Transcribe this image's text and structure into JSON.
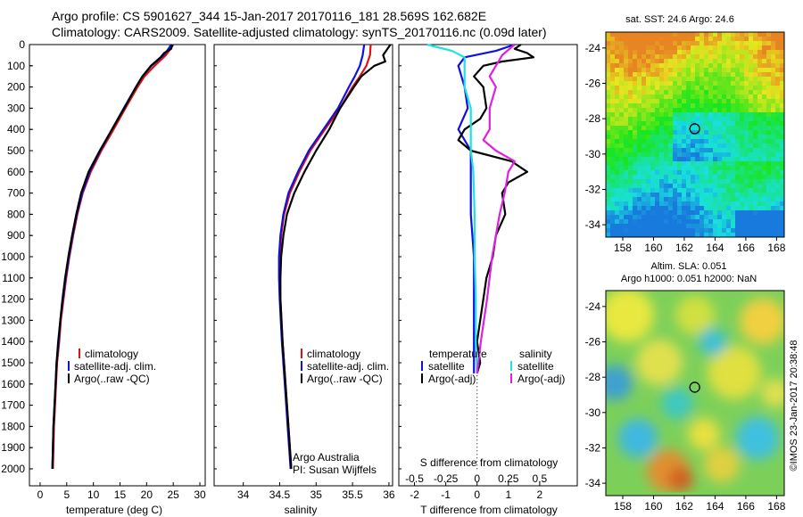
{
  "header": {
    "line1": "Argo profile: CS 5901627_344 15-Jan-2017 20170116_181 28.569S 162.682E",
    "line2": "Climatology: CARS2009. Satellite-adjusted climatology: synTS_20170116.nc (0.09d later)"
  },
  "colors": {
    "climatology": "#e01010",
    "satellite": "#1010e0",
    "argo": "#000000",
    "salinity_satellite": "#20e0e0",
    "salinity_argo": "#e020e0"
  },
  "shared_axes": {
    "depth_ticks": [
      0,
      100,
      200,
      300,
      400,
      500,
      600,
      700,
      800,
      900,
      1000,
      1100,
      1200,
      1300,
      1400,
      1500,
      1600,
      1700,
      1800,
      1900,
      2000
    ],
    "depth_range": [
      0,
      2080
    ]
  },
  "notes": {
    "argo_australia": "Argo Australia",
    "pi": "PI: Susan Wijffels",
    "imos": "©IMOS 23-Jan-2017 20:38:48"
  },
  "chart_data": [
    {
      "id": "temperature",
      "type": "line",
      "xlabel": "temperature (deg C)",
      "xlim": [
        -2,
        31
      ],
      "xticks": [
        0,
        5,
        10,
        15,
        20,
        25,
        30
      ],
      "ylim": [
        0,
        2080
      ],
      "legend": [
        "climatology",
        "satellite-adj. clim.",
        "Argo(..raw -QC)"
      ],
      "series": [
        {
          "name": "climatology",
          "color": "#e01010",
          "y": [
            0,
            20,
            50,
            100,
            150,
            200,
            300,
            400,
            500,
            600,
            700,
            800,
            900,
            1000,
            1100,
            1200,
            1300,
            1400,
            1500,
            1600,
            1700,
            1800,
            1900,
            2000
          ],
          "x": [
            25,
            24.5,
            23.6,
            21.5,
            19.6,
            18.3,
            16,
            13.8,
            11.5,
            9.5,
            8,
            7,
            6.2,
            5.5,
            4.9,
            4.4,
            3.9,
            3.6,
            3.2,
            3,
            2.8,
            2.6,
            2.5,
            2.4
          ]
        },
        {
          "name": "satellite-adj. clim.",
          "color": "#1010e0",
          "y": [
            0,
            20,
            50,
            100,
            150,
            200,
            300,
            400,
            500,
            600,
            700,
            800,
            900,
            1000,
            1100,
            1200,
            1300,
            1400,
            1500,
            1600,
            1700,
            1800,
            1900,
            2000
          ],
          "x": [
            24.6,
            24.1,
            23.2,
            20.9,
            19.2,
            18,
            15.7,
            13.5,
            11.3,
            9.3,
            7.9,
            6.9,
            6.1,
            5.4,
            4.8,
            4.3,
            3.8,
            3.5,
            3.1,
            2.9,
            2.7,
            2.5,
            2.4,
            2.3
          ]
        },
        {
          "name": "Argo(..raw -QC)",
          "color": "#000000",
          "y": [
            0,
            20,
            40,
            60,
            100,
            150,
            200,
            300,
            400,
            500,
            600,
            700,
            800,
            900,
            1000,
            1100,
            1200,
            1300,
            1400,
            1500,
            1600,
            1700,
            1800,
            1900,
            2000
          ],
          "x": [
            24.8,
            24.6,
            23.3,
            22.6,
            20.8,
            19.2,
            18,
            15.8,
            13.5,
            11.2,
            9.1,
            7.7,
            6.8,
            6,
            5.3,
            4.7,
            4.2,
            3.8,
            3.4,
            3.1,
            2.9,
            2.7,
            2.5,
            2.4,
            2.3
          ]
        }
      ]
    },
    {
      "id": "salinity",
      "type": "line",
      "xlabel": "salinity",
      "xlim": [
        33.6,
        36.05
      ],
      "xticks": [
        34,
        34.5,
        35,
        35.5,
        36
      ],
      "ylim": [
        0,
        2080
      ],
      "legend": [
        "climatology",
        "satellite-adj. clim.",
        "Argo(..raw -QC)"
      ],
      "series": [
        {
          "name": "climatology",
          "color": "#e01010",
          "y": [
            0,
            50,
            100,
            150,
            200,
            300,
            400,
            500,
            600,
            700,
            800,
            900,
            1000,
            1100,
            1200,
            1400,
            1600,
            1800,
            2000
          ],
          "x": [
            35.75,
            35.74,
            35.69,
            35.6,
            35.5,
            35.33,
            35.12,
            34.92,
            34.77,
            34.64,
            34.56,
            34.52,
            34.5,
            34.5,
            34.51,
            34.54,
            34.58,
            34.62,
            34.66
          ]
        },
        {
          "name": "satellite-adj. clim.",
          "color": "#1010e0",
          "y": [
            0,
            50,
            100,
            150,
            200,
            300,
            400,
            500,
            600,
            700,
            800,
            900,
            1000,
            1100,
            1200,
            1400,
            1600,
            1800,
            2000
          ],
          "x": [
            35.66,
            35.64,
            35.6,
            35.53,
            35.45,
            35.3,
            35.1,
            34.9,
            34.75,
            34.62,
            34.55,
            34.51,
            34.49,
            34.49,
            34.5,
            34.53,
            34.57,
            34.61,
            34.65
          ]
        },
        {
          "name": "Argo(..raw -QC)",
          "color": "#000000",
          "y": [
            0,
            20,
            50,
            80,
            100,
            150,
            200,
            300,
            400,
            500,
            600,
            700,
            800,
            900,
            1000,
            1100,
            1200,
            1400,
            1600,
            1800,
            2000
          ],
          "x": [
            36.02,
            35.98,
            35.92,
            35.95,
            35.8,
            35.62,
            35.52,
            35.33,
            35.18,
            35,
            34.84,
            34.7,
            34.6,
            34.55,
            34.52,
            34.51,
            34.51,
            34.54,
            34.58,
            34.62,
            34.66
          ]
        }
      ]
    },
    {
      "id": "differences",
      "type": "line",
      "xlabel": "T difference from climatology",
      "xlabel_top": "S difference from climatology",
      "t_xlim": [
        -2.5,
        3.2
      ],
      "t_xticks": [
        -2,
        -1,
        0,
        1,
        2
      ],
      "s_xtick_labels": [
        "-0.5",
        "-0.25",
        "0",
        "0.25",
        "0.5"
      ],
      "ylim": [
        0,
        2080
      ],
      "legend_titles": [
        "temperature",
        "salinity"
      ],
      "legend": [
        "satellite",
        "Argo(-adj)",
        "satellite",
        "Argo(-adj)"
      ],
      "series": [
        {
          "name": "temperature satellite",
          "color": "#1010e0",
          "y": [
            0,
            30,
            60,
            100,
            200,
            300,
            400,
            500,
            600,
            800,
            1000,
            1200,
            1400,
            1550
          ],
          "x": [
            1.2,
            0.6,
            -0.4,
            -0.6,
            -0.4,
            -0.3,
            -0.6,
            -0.2,
            -0.2,
            -0.2,
            -0.1,
            -0.1,
            -0.1,
            -0.1
          ]
        },
        {
          "name": "temperature Argo(-adj)",
          "color": "#000000",
          "y": [
            0,
            20,
            40,
            60,
            80,
            100,
            150,
            200,
            300,
            350,
            400,
            450,
            500,
            550,
            600,
            650,
            700,
            800,
            900,
            1000,
            1100,
            1200,
            1300,
            1400,
            1500,
            1550
          ],
          "x": [
            1.4,
            1.2,
            1.6,
            1.8,
            0.8,
            0.2,
            -0.1,
            0.2,
            0.3,
            0.1,
            -0.4,
            -0.6,
            -0.2,
            1.1,
            1.6,
            1.0,
            0.8,
            0.9,
            0.6,
            0.5,
            0.3,
            0.2,
            0.1,
            0.0,
            0.1,
            0.0
          ]
        },
        {
          "name": "salinity satellite",
          "color": "#20e0e0",
          "y": [
            0,
            30,
            60,
            100,
            200,
            300,
            400,
            500,
            600,
            800,
            1000,
            1200,
            1400,
            1550
          ],
          "x": [
            -0.4,
            -0.2,
            -0.1,
            -0.1,
            -0.1,
            -0.05,
            -0.05,
            -0.05,
            -0.03,
            -0.02,
            -0.02,
            -0.01,
            -0.01,
            0.0
          ]
        },
        {
          "name": "salinity Argo(-adj)",
          "color": "#e020e0",
          "y": [
            0,
            50,
            100,
            150,
            200,
            300,
            400,
            450,
            500,
            550,
            600,
            700,
            800,
            1000,
            1200,
            1400,
            1550
          ],
          "x": [
            0.3,
            0.2,
            0.15,
            0.1,
            0.15,
            0.1,
            0.1,
            0.05,
            0.15,
            0.3,
            0.25,
            0.22,
            0.18,
            0.12,
            0.08,
            0.03,
            0.0
          ]
        }
      ]
    },
    {
      "id": "sst_map",
      "type": "heatmap",
      "title": "sat. SST: 24.6 Argo: 24.6",
      "xlim": [
        156.9,
        168.5
      ],
      "ylim": [
        -34.7,
        -23.1
      ],
      "xticks": [
        158,
        160,
        162,
        164,
        166,
        168
      ],
      "yticks": [
        -24,
        -26,
        -28,
        -30,
        -32,
        -34
      ],
      "marker": {
        "lon": 162.68,
        "lat": -28.57
      }
    },
    {
      "id": "sla_map",
      "type": "heatmap",
      "title": "Altim. SLA: 0.051",
      "subtitle": "Argo h1000: 0.051 h2000: NaN",
      "xlim": [
        156.9,
        168.5
      ],
      "ylim": [
        -34.7,
        -23.1
      ],
      "xticks": [
        158,
        160,
        162,
        164,
        166,
        168
      ],
      "yticks": [
        -24,
        -26,
        -28,
        -30,
        -32,
        -34
      ],
      "marker": {
        "lon": 162.68,
        "lat": -28.57
      }
    }
  ]
}
